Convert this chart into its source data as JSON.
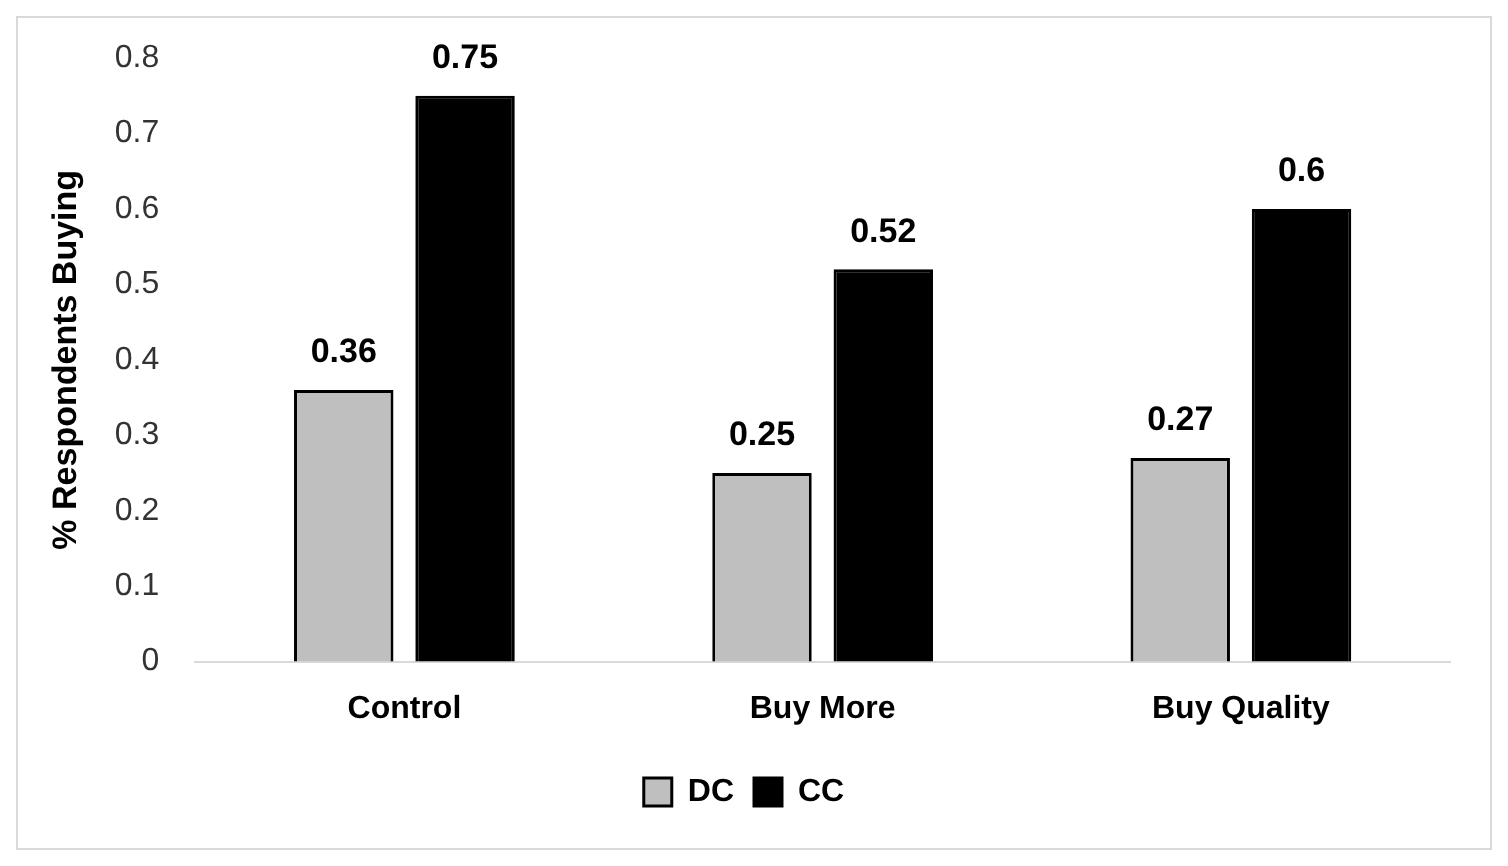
{
  "chart_data": {
    "type": "bar",
    "ylabel": "% Respondents Buying",
    "categories": [
      "Control",
      "Buy More",
      "Buy Quality"
    ],
    "series": [
      {
        "name": "DC",
        "color": "#bfbfbf",
        "values": [
          0.36,
          0.25,
          0.27
        ]
      },
      {
        "name": "CC",
        "color": "#000000",
        "values": [
          0.75,
          0.52,
          0.6
        ]
      }
    ],
    "ylim": [
      0,
      0.8
    ],
    "yticks": [
      0,
      0.1,
      0.2,
      0.3,
      0.4,
      0.5,
      0.6,
      0.7,
      0.8
    ],
    "grid": false,
    "legend": "bottom",
    "data_labels": true
  }
}
